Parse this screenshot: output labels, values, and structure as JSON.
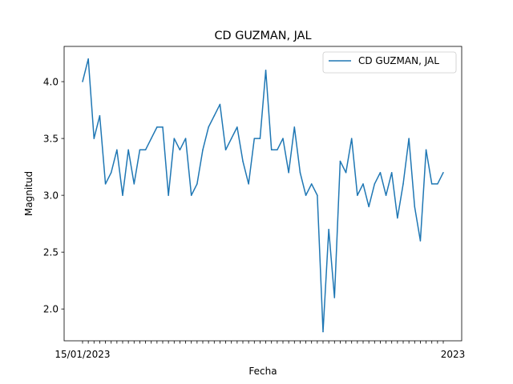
{
  "chart_data": {
    "type": "line",
    "title": "CD GUZMAN, JAL",
    "xlabel": "Fecha",
    "ylabel": "Magnitud",
    "ylim": [
      1.72,
      4.31
    ],
    "yticks": [
      2.0,
      2.5,
      3.0,
      3.5,
      4.0
    ],
    "ytick_labels": [
      "2.0",
      "2.5",
      "3.0",
      "3.5",
      "4.0"
    ],
    "grid": false,
    "legend_position": "top-right",
    "colors": {
      "series": "#1f77b4"
    },
    "xtick_first_label": "15/01/2023",
    "xtick_last_label": "2023",
    "series": [
      {
        "name": "CD GUZMAN, JAL",
        "values": [
          4.0,
          4.2,
          3.5,
          3.7,
          3.1,
          3.2,
          3.4,
          3.0,
          3.4,
          3.1,
          3.4,
          3.4,
          3.5,
          3.6,
          3.6,
          3.0,
          3.5,
          3.4,
          3.5,
          3.0,
          3.1,
          3.4,
          3.6,
          3.7,
          3.8,
          3.4,
          3.5,
          3.6,
          3.3,
          3.1,
          3.5,
          3.5,
          4.1,
          3.4,
          3.4,
          3.5,
          3.2,
          3.6,
          3.2,
          3.0,
          3.1,
          3.0,
          1.8,
          2.7,
          2.1,
          3.3,
          3.2,
          3.5,
          3.0,
          3.1,
          2.9,
          3.1,
          3.2,
          3.0,
          3.2,
          2.8,
          3.1,
          3.5,
          2.9,
          2.6,
          3.4,
          3.1,
          3.1,
          3.2
        ]
      }
    ]
  }
}
